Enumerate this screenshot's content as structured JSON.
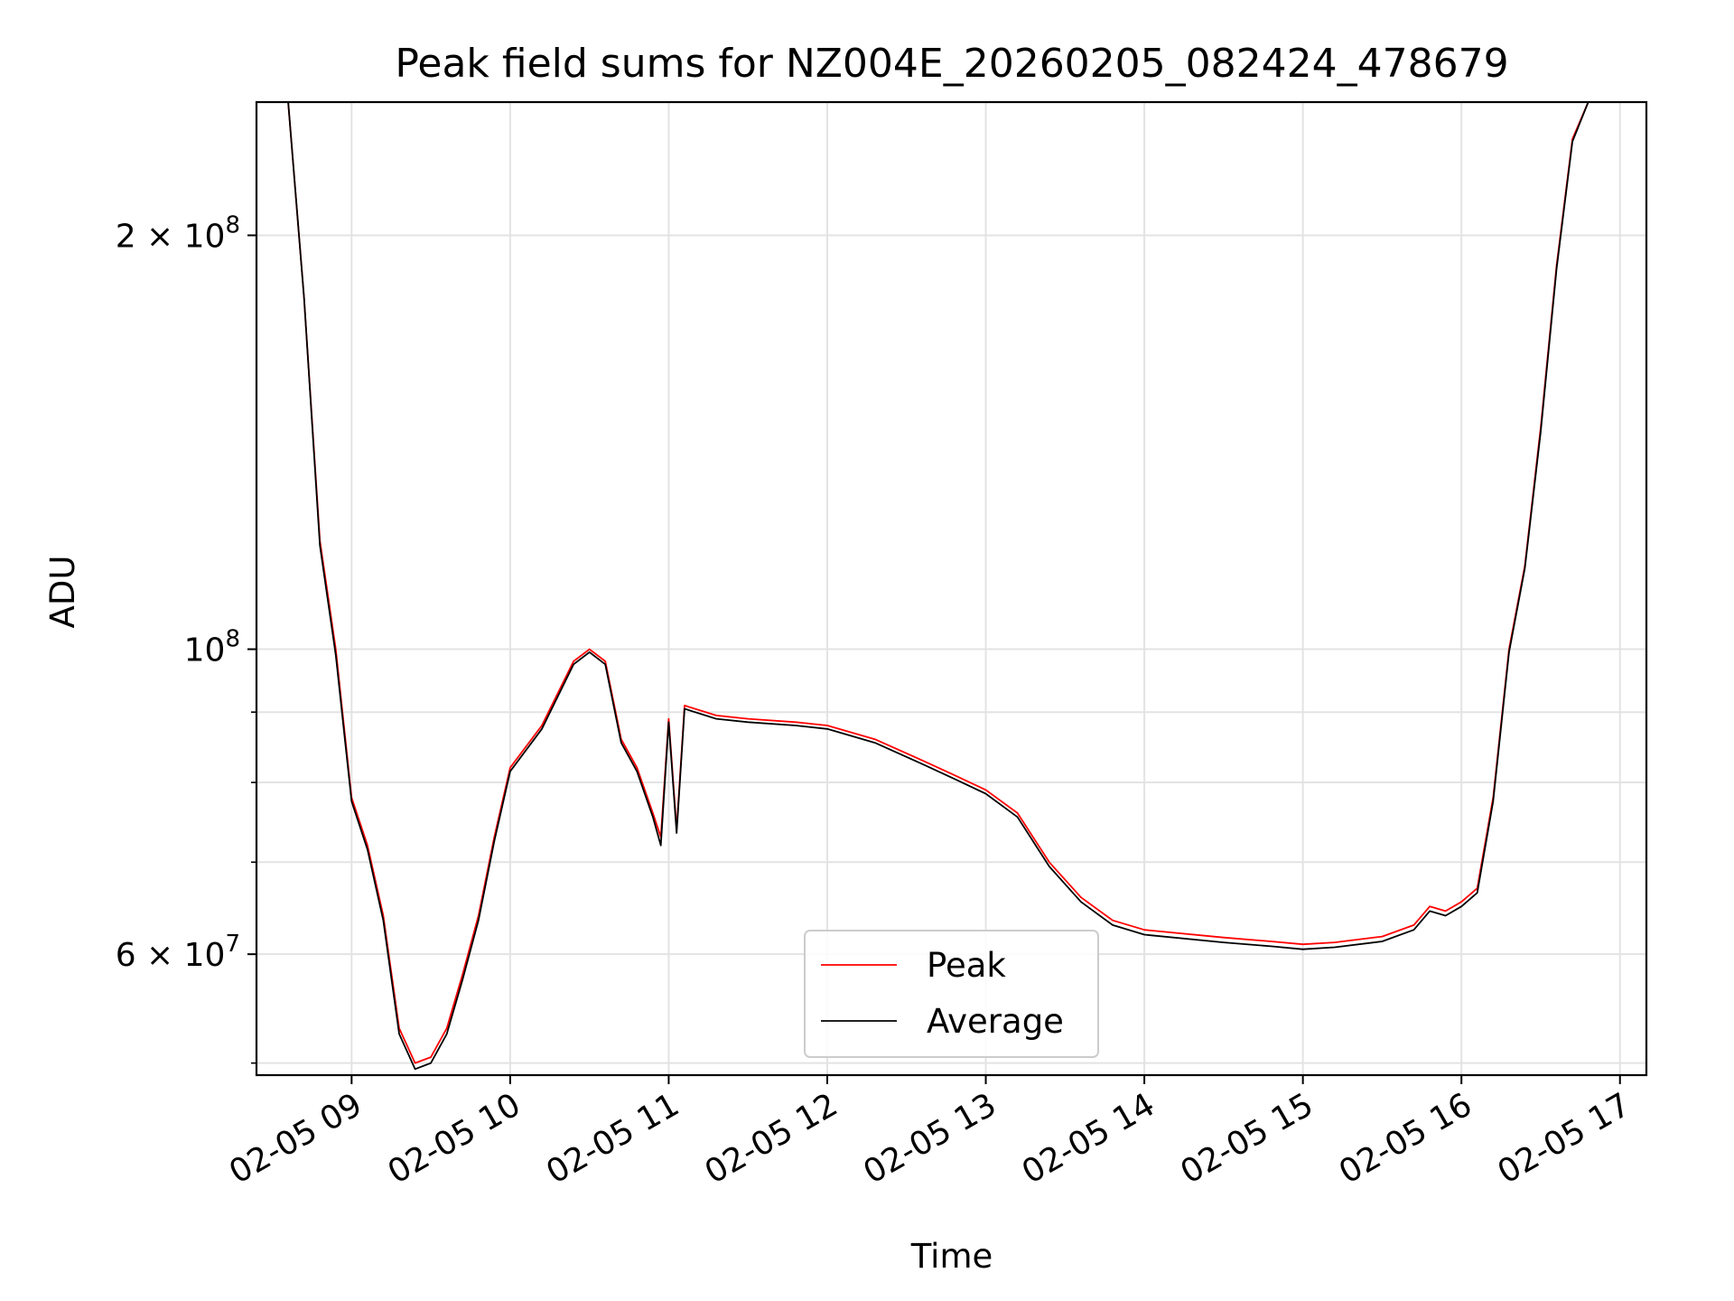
{
  "chart_data": {
    "type": "line",
    "title": "Peak field sums for NZ004E_20260205_082424_478679",
    "xlabel": "Time",
    "ylabel": "ADU",
    "y_scale": "log",
    "ylim": [
      49000000,
      250000000
    ],
    "xlim": [
      "02-05 08:24",
      "02-05 17:10"
    ],
    "grid": true,
    "legend": "lower center",
    "x_ticks": [
      "02-05 09",
      "02-05 10",
      "02-05 11",
      "02-05 12",
      "02-05 13",
      "02-05 14",
      "02-05 15",
      "02-05 16",
      "02-05 17"
    ],
    "y_ticks_major": [
      {
        "value": 200000000,
        "mantissa": "2 × 10",
        "exp": "8"
      },
      {
        "value": 100000000,
        "mantissa": "10",
        "exp": "8"
      },
      {
        "value": 60000000,
        "mantissa": "6 × 10",
        "exp": "7"
      }
    ],
    "y_ticks_minor": [
      50000000,
      70000000,
      80000000,
      90000000
    ],
    "series": [
      {
        "name": "Peak",
        "color": "#ff0000",
        "x": [
          "02-05 08:24",
          "02-05 08:36",
          "02-05 08:42",
          "02-05 08:48",
          "02-05 08:54",
          "02-05 09:00",
          "02-05 09:06",
          "02-05 09:12",
          "02-05 09:18",
          "02-05 09:24",
          "02-05 09:30",
          "02-05 09:36",
          "02-05 09:42",
          "02-05 09:48",
          "02-05 09:54",
          "02-05 10:00",
          "02-05 10:12",
          "02-05 10:24",
          "02-05 10:30",
          "02-05 10:36",
          "02-05 10:42",
          "02-05 10:48",
          "02-05 10:54",
          "02-05 10:57",
          "02-05 11:00",
          "02-05 11:03",
          "02-05 11:06",
          "02-05 11:18",
          "02-05 11:30",
          "02-05 11:48",
          "02-05 12:00",
          "02-05 12:18",
          "02-05 12:36",
          "02-05 12:48",
          "02-05 13:00",
          "02-05 13:12",
          "02-05 13:24",
          "02-05 13:36",
          "02-05 13:48",
          "02-05 14:00",
          "02-05 14:30",
          "02-05 14:48",
          "02-05 15:00",
          "02-05 15:12",
          "02-05 15:30",
          "02-05 15:42",
          "02-05 15:48",
          "02-05 15:54",
          "02-05 16:00",
          "02-05 16:06",
          "02-05 16:12",
          "02-05 16:18",
          "02-05 16:24",
          "02-05 16:30",
          "02-05 16:36",
          "02-05 16:42",
          "02-05 16:48",
          "02-05 16:54",
          "02-05 17:10"
        ],
        "y": [
          250000000,
          250000000,
          180000000,
          120000000,
          100000000,
          78000000,
          72000000,
          64000000,
          53000000,
          50000000,
          50500000,
          53000000,
          58000000,
          64000000,
          73000000,
          82000000,
          88000000,
          98000000,
          100000000,
          98000000,
          86000000,
          82000000,
          76000000,
          73000000,
          89000000,
          74000000,
          91000000,
          89500000,
          89000000,
          88500000,
          88000000,
          86000000,
          83000000,
          81000000,
          79000000,
          76000000,
          70000000,
          66000000,
          63500000,
          62500000,
          61700000,
          61300000,
          61000000,
          61200000,
          61800000,
          63000000,
          65000000,
          64500000,
          65500000,
          67000000,
          78000000,
          100000000,
          115000000,
          145000000,
          190000000,
          235000000,
          250000000,
          250000000,
          250000000
        ]
      },
      {
        "name": "Average",
        "color": "#000000",
        "x": [
          "02-05 08:24",
          "02-05 08:36",
          "02-05 08:42",
          "02-05 08:48",
          "02-05 08:54",
          "02-05 09:00",
          "02-05 09:06",
          "02-05 09:12",
          "02-05 09:18",
          "02-05 09:24",
          "02-05 09:30",
          "02-05 09:36",
          "02-05 09:42",
          "02-05 09:48",
          "02-05 09:54",
          "02-05 10:00",
          "02-05 10:12",
          "02-05 10:24",
          "02-05 10:30",
          "02-05 10:36",
          "02-05 10:42",
          "02-05 10:48",
          "02-05 10:54",
          "02-05 10:57",
          "02-05 11:00",
          "02-05 11:03",
          "02-05 11:06",
          "02-05 11:18",
          "02-05 11:30",
          "02-05 11:48",
          "02-05 12:00",
          "02-05 12:18",
          "02-05 12:36",
          "02-05 12:48",
          "02-05 13:00",
          "02-05 13:12",
          "02-05 13:24",
          "02-05 13:36",
          "02-05 13:48",
          "02-05 14:00",
          "02-05 14:30",
          "02-05 14:48",
          "02-05 15:00",
          "02-05 15:12",
          "02-05 15:30",
          "02-05 15:42",
          "02-05 15:48",
          "02-05 15:54",
          "02-05 16:00",
          "02-05 16:06",
          "02-05 16:12",
          "02-05 16:18",
          "02-05 16:24",
          "02-05 16:30",
          "02-05 16:36",
          "02-05 16:42",
          "02-05 16:48",
          "02-05 16:54",
          "02-05 17:10"
        ],
        "y": [
          250000000,
          250000000,
          180000000,
          119000000,
          99000000,
          77500000,
          71500000,
          63500000,
          52500000,
          49500000,
          50000000,
          52500000,
          57500000,
          63500000,
          72500000,
          81500000,
          87500000,
          97500000,
          99500000,
          97500000,
          85500000,
          81500000,
          75500000,
          72000000,
          88500000,
          73500000,
          90500000,
          89000000,
          88500000,
          88000000,
          87500000,
          85500000,
          82500000,
          80500000,
          78500000,
          75500000,
          69500000,
          65500000,
          63000000,
          62000000,
          61200000,
          60800000,
          60500000,
          60700000,
          61300000,
          62500000,
          64500000,
          64000000,
          65000000,
          66500000,
          77500000,
          99500000,
          114500000,
          144000000,
          189000000,
          234000000,
          250000000,
          250000000,
          250000000
        ]
      }
    ]
  }
}
